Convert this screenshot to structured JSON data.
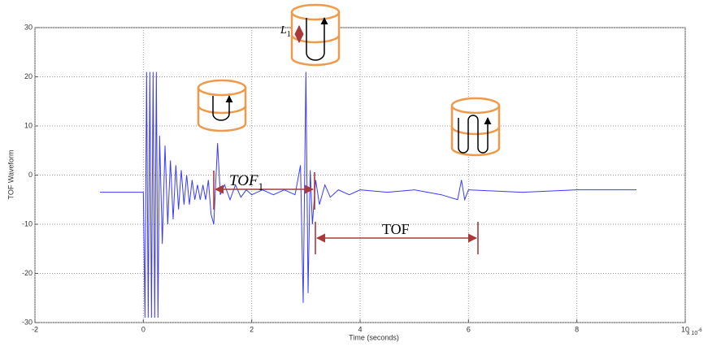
{
  "chart_data": {
    "type": "line",
    "x_label": "Time (seconds)",
    "y_label": "TOF Waveform",
    "x_multiplier": {
      "base": "x 10",
      "exponent": "-6"
    },
    "annotations": {
      "tof": "TOF",
      "tof1": {
        "main": "TOF",
        "sub": "1"
      },
      "l1": {
        "main": "L",
        "sub": "1"
      }
    },
    "color": "#3a3aff",
    "grid": true,
    "xlim": [
      -2,
      10
    ],
    "xticks": [
      -2,
      0,
      2,
      4,
      6,
      8,
      10
    ],
    "ylim": [
      -30,
      30
    ],
    "yticks": [
      -30,
      -20,
      -10,
      0,
      10,
      20,
      30
    ],
    "x": [
      -0.8,
      0.0,
      0.03,
      0.06,
      0.09,
      0.12,
      0.15,
      0.18,
      0.21,
      0.24,
      0.27,
      0.3,
      0.35,
      0.4,
      0.45,
      0.5,
      0.55,
      0.6,
      0.65,
      0.7,
      0.75,
      0.8,
      0.85,
      0.9,
      0.95,
      1.0,
      1.05,
      1.1,
      1.15,
      1.2,
      1.25,
      1.3,
      1.33,
      1.37,
      1.42,
      1.5,
      1.6,
      1.7,
      1.8,
      1.9,
      2.0,
      2.2,
      2.4,
      2.6,
      2.8,
      2.9,
      2.95,
      3.0,
      3.04,
      3.08,
      3.12,
      3.18,
      3.25,
      3.35,
      3.45,
      3.6,
      3.8,
      4.0,
      4.5,
      5.0,
      5.5,
      5.8,
      5.87,
      5.93,
      6.0,
      7.0,
      8.0,
      9.1
    ],
    "values": [
      -3.5,
      -3.5,
      -29,
      21,
      -29,
      21,
      -29,
      21,
      -29,
      21,
      -29,
      8,
      -14,
      6,
      -10,
      3,
      -9,
      2,
      -7,
      1,
      -6,
      0,
      -6,
      -1,
      -5,
      -2,
      -5,
      -2,
      -5,
      -1,
      -8,
      -10,
      -3,
      6.5,
      -4,
      -2,
      -5,
      -2,
      -4.5,
      -3,
      -4,
      -3,
      -4,
      -3,
      -4,
      2,
      -26,
      21,
      -24,
      1,
      -10,
      -1,
      -6,
      -2,
      -4.5,
      -3,
      -4,
      -3,
      -3.5,
      -3,
      -4,
      -5,
      -1,
      -5,
      -3,
      -3.5,
      -3,
      -3
    ]
  }
}
